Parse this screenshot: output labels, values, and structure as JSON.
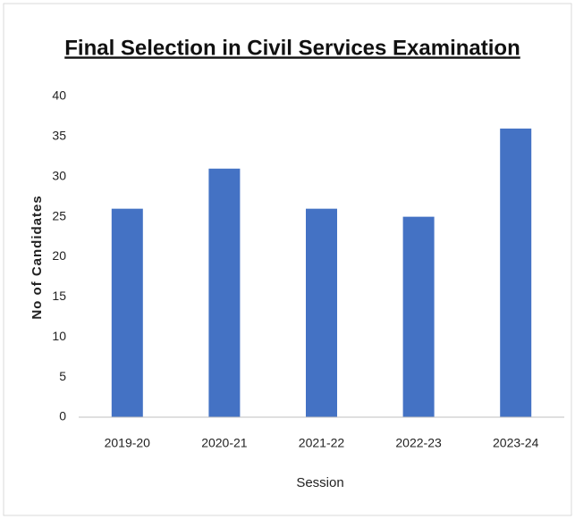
{
  "chart_data": {
    "type": "bar",
    "title": "Final Selection in Civil Services Examination",
    "x_label": "Session",
    "y_label": "No of Candidates",
    "categories": [
      "2019-20",
      "2020-21",
      "2021-22",
      "2022-23",
      "2023-24"
    ],
    "values": [
      26,
      31,
      26,
      25,
      36
    ],
    "color": "#4472c4",
    "ylim": [
      0,
      40
    ],
    "yticks": [
      0,
      5,
      10,
      15,
      20,
      25,
      30,
      35,
      40
    ],
    "grid": false
  }
}
